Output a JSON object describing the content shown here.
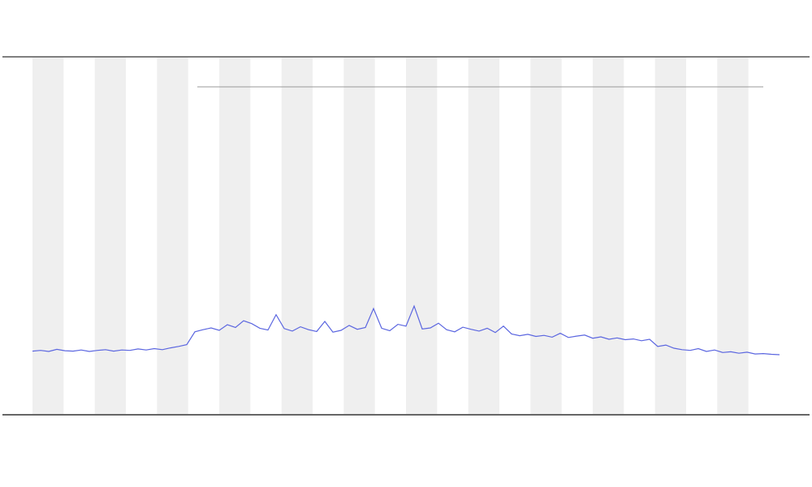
{
  "chart_data": {
    "type": "line",
    "x": [
      0,
      10,
      20,
      30,
      40,
      50,
      60,
      70,
      80,
      90,
      100,
      110,
      120,
      130,
      140,
      150,
      160,
      170,
      180,
      190,
      200,
      210,
      220,
      230,
      240,
      250,
      260,
      270,
      280,
      290,
      300,
      310,
      320,
      330,
      340,
      350,
      360,
      370,
      380,
      390,
      400,
      410,
      420,
      430,
      440,
      450,
      460,
      470,
      480,
      490,
      500,
      510,
      520,
      530,
      540,
      550,
      560,
      570,
      580,
      590,
      600,
      610,
      620,
      630,
      640,
      650,
      660,
      670,
      680,
      690,
      700,
      710,
      720,
      730,
      740,
      750,
      760,
      770,
      780,
      790,
      800,
      810,
      820,
      830,
      840,
      850,
      860,
      870,
      880,
      890,
      900,
      910,
      920
    ],
    "series": [
      {
        "color": "#5b66e0",
        "values": [
          17.6,
          17.8,
          17.5,
          18.1,
          17.7,
          17.6,
          17.9,
          17.5,
          17.8,
          18.0,
          17.6,
          17.9,
          17.8,
          18.2,
          17.9,
          18.3,
          18.0,
          18.5,
          18.9,
          19.4,
          23.0,
          23.6,
          24.1,
          23.4,
          25.0,
          24.2,
          26.1,
          25.3,
          24.0,
          23.5,
          27.8,
          23.9,
          23.2,
          24.4,
          23.6,
          23.1,
          25.9,
          22.9,
          23.4,
          24.8,
          23.7,
          24.2,
          29.5,
          24.0,
          23.3,
          25.1,
          24.6,
          30.2,
          23.8,
          24.1,
          25.4,
          23.6,
          23.0,
          24.3,
          23.7,
          23.2,
          24.0,
          22.8,
          24.6,
          22.4,
          21.9,
          22.3,
          21.7,
          22.0,
          21.5,
          22.6,
          21.4,
          21.8,
          22.1,
          21.2,
          21.6,
          20.9,
          21.3,
          20.8,
          21.0,
          20.5,
          20.9,
          18.9,
          19.3,
          18.4,
          18.0,
          17.8,
          18.3,
          17.5,
          17.9,
          17.2,
          17.4,
          17.0,
          17.3,
          16.8,
          16.9,
          16.7,
          16.6
        ]
      }
    ],
    "xlim": [
      0,
      920
    ],
    "ylim": [
      0,
      100
    ]
  }
}
